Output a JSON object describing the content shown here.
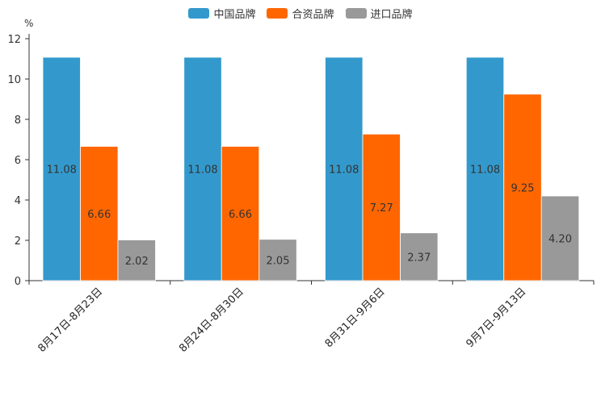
{
  "chart_data": {
    "type": "bar",
    "unit": "%",
    "categories": [
      "8月17日-8月23日",
      "8月24日-8月30日",
      "8月31日-9月6日",
      "9月7日-9月13日"
    ],
    "series": [
      {
        "name": "中国品牌",
        "color": "#3399cc",
        "values": [
          11.08,
          11.08,
          11.08,
          11.08
        ],
        "labels": [
          "11.08",
          "11.08",
          "11.08",
          "11.08"
        ]
      },
      {
        "name": "合资品牌",
        "color": "#ff6600",
        "values": [
          6.66,
          6.66,
          7.27,
          9.25
        ],
        "labels": [
          "6.66",
          "6.66",
          "7.27",
          "9.25"
        ]
      },
      {
        "name": "进口品牌",
        "color": "#999999",
        "values": [
          2.02,
          2.05,
          2.37,
          4.2
        ],
        "labels": [
          "2.02",
          "2.05",
          "2.37",
          "4.20"
        ]
      }
    ],
    "ylim": [
      0,
      12
    ],
    "yticks": [
      "0",
      "2",
      "4",
      "6",
      "8",
      "10",
      "12"
    ],
    "legend_position": "top-center",
    "grid": false
  }
}
